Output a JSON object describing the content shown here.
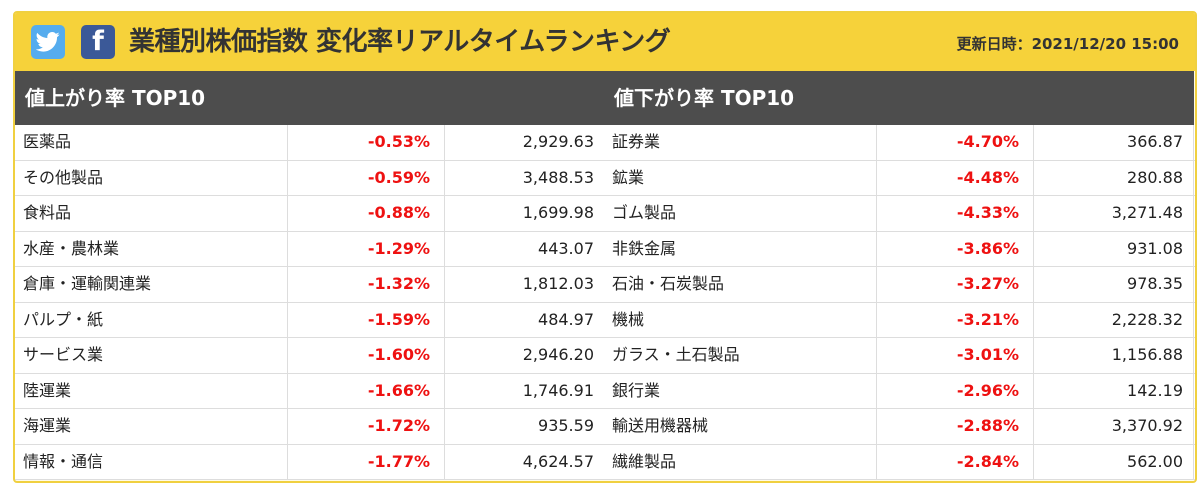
{
  "header": {
    "title": "業種別株価指数 変化率リアルタイムランキング",
    "updated": "更新日時：2021/12/20 15:00",
    "twitter_icon": "twitter-icon",
    "facebook_icon": "facebook-icon",
    "facebook_glyph": "f",
    "colors": {
      "header_bg": "#f6d23a",
      "panel_head_bg": "#4d4d4d",
      "negative": "#ee1111"
    }
  },
  "gainers": {
    "heading": "値上がり率 TOP10",
    "rows": [
      {
        "name": "医薬品",
        "pct": "-0.53%",
        "value": "2,929.63"
      },
      {
        "name": "その他製品",
        "pct": "-0.59%",
        "value": "3,488.53"
      },
      {
        "name": "食料品",
        "pct": "-0.88%",
        "value": "1,699.98"
      },
      {
        "name": "水産・農林業",
        "pct": "-1.29%",
        "value": "443.07"
      },
      {
        "name": "倉庫・運輸関連業",
        "pct": "-1.32%",
        "value": "1,812.03"
      },
      {
        "name": "パルプ・紙",
        "pct": "-1.59%",
        "value": "484.97"
      },
      {
        "name": "サービス業",
        "pct": "-1.60%",
        "value": "2,946.20"
      },
      {
        "name": "陸運業",
        "pct": "-1.66%",
        "value": "1,746.91"
      },
      {
        "name": "海運業",
        "pct": "-1.72%",
        "value": "935.59"
      },
      {
        "name": "情報・通信",
        "pct": "-1.77%",
        "value": "4,624.57"
      }
    ]
  },
  "losers": {
    "heading": "値下がり率 TOP10",
    "rows": [
      {
        "name": "証券業",
        "pct": "-4.70%",
        "value": "366.87"
      },
      {
        "name": "鉱業",
        "pct": "-4.48%",
        "value": "280.88"
      },
      {
        "name": "ゴム製品",
        "pct": "-4.33%",
        "value": "3,271.48"
      },
      {
        "name": "非鉄金属",
        "pct": "-3.86%",
        "value": "931.08"
      },
      {
        "name": "石油・石炭製品",
        "pct": "-3.27%",
        "value": "978.35"
      },
      {
        "name": "機械",
        "pct": "-3.21%",
        "value": "2,228.32"
      },
      {
        "name": "ガラス・土石製品",
        "pct": "-3.01%",
        "value": "1,156.88"
      },
      {
        "name": "銀行業",
        "pct": "-2.96%",
        "value": "142.19"
      },
      {
        "name": "輸送用機器械",
        "pct": "-2.88%",
        "value": "3,370.92"
      },
      {
        "name": "繊維製品",
        "pct": "-2.84%",
        "value": "562.00"
      }
    ]
  }
}
